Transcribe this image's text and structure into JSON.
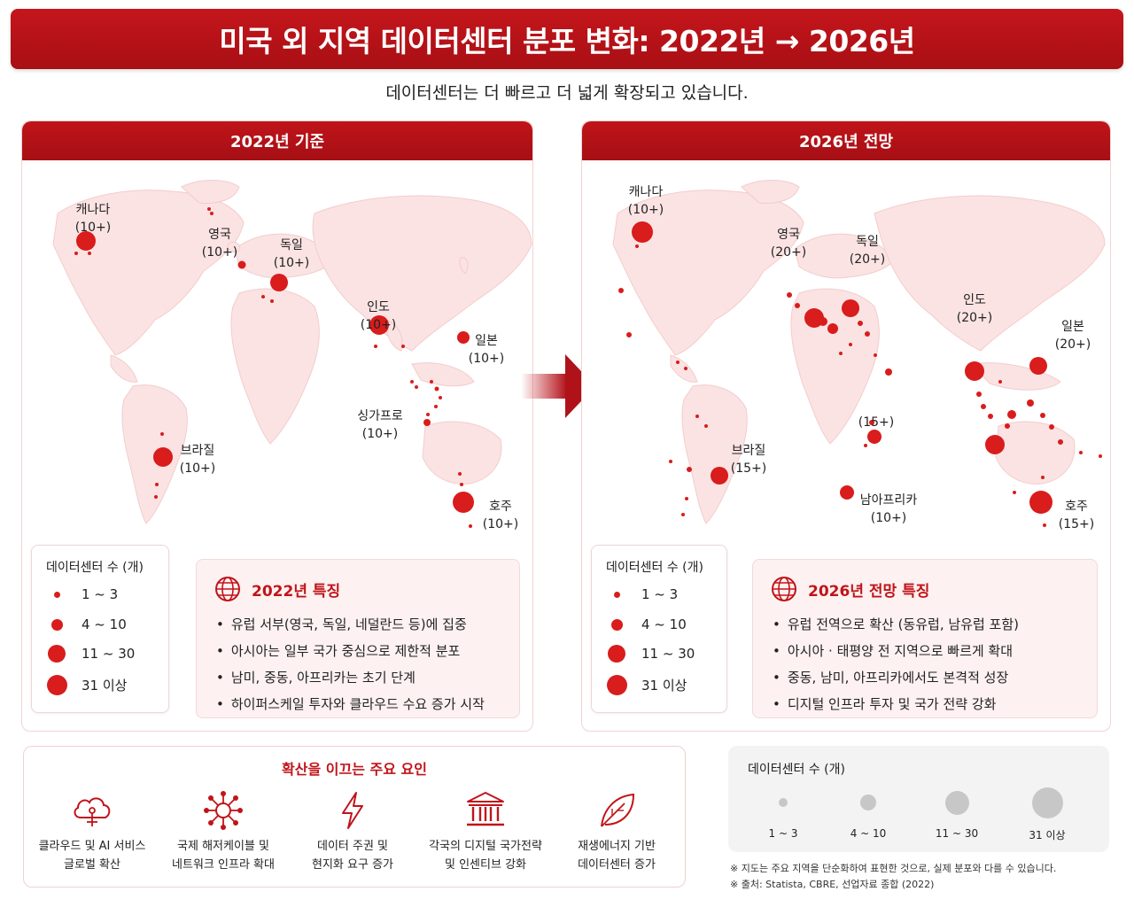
{
  "title": "미국 외 지역 데이터센터 분포 변화: 2022년 → 2026년",
  "subtitle": "데이터센터는 더 빠르고 더 넓게 확장되고 있습니다.",
  "left": {
    "header": "2022년 기준",
    "labels": [
      {
        "name": "캐나다",
        "count": "(10+)"
      },
      {
        "name": "영국",
        "count": "(10+)"
      },
      {
        "name": "독일",
        "count": "(10+)"
      },
      {
        "name": "인도",
        "count": "(10+)"
      },
      {
        "name": "일본",
        "count": "(10+)"
      },
      {
        "name": "싱가프로",
        "count": "(10+)"
      },
      {
        "name": "브라질",
        "count": "(10+)"
      },
      {
        "name": "호주",
        "count": "(10+)"
      }
    ],
    "feature_title": "2022년 특징",
    "features": [
      "유럽 서부(영국, 독일, 네덜란드 등)에 집중",
      "아시아는 일부 국가 중심으로 제한적 분포",
      "남미, 중동, 아프리카는 초기 단계",
      "하이퍼스케일 투자와 클라우드 수요 증가 시작"
    ]
  },
  "right": {
    "header": "2026년 전망",
    "labels": [
      {
        "name": "캐나다",
        "count": "(10+)"
      },
      {
        "name": "영국",
        "count": "(20+)"
      },
      {
        "name": "독일",
        "count": "(20+)"
      },
      {
        "name": "인도",
        "count": "(20+)"
      },
      {
        "name": "일본",
        "count": "(20+)"
      },
      {
        "name": "",
        "count": "(15+)"
      },
      {
        "name": "브라질",
        "count": "(15+)"
      },
      {
        "name": "남아프리카",
        "count": "(10+)"
      },
      {
        "name": "호주",
        "count": "(15+)"
      }
    ],
    "feature_title": "2026년 전망 특징",
    "features": [
      "유럽 전역으로 확산 (동유럽, 남유럽 포함)",
      "아시아 · 태평양 전 지역으로 빠르게 확대",
      "중동, 남미, 아프리카에서도 본격적 성장",
      "디지털 인프라 투자 및 국가 전략 강화"
    ]
  },
  "legend": {
    "title": "데이터센터 수 (개)",
    "items": [
      "1 ~ 3",
      "4 ~ 10",
      "11 ~ 30",
      "31 이상"
    ]
  },
  "factors": {
    "title": "확산을 이끄는 주요 요인",
    "items": [
      {
        "icon": "cloud-ai-icon",
        "line1": "클라우드 및 AI 서비스",
        "line2": "글로벌 확산"
      },
      {
        "icon": "network-icon",
        "line1": "국제 해저케이블 및",
        "line2": "네트워크 인프라 확대"
      },
      {
        "icon": "lightning-icon",
        "line1": "데이터 주권 및",
        "line2": "현지화 요구 증가"
      },
      {
        "icon": "government-icon",
        "line1": "각국의 디지털 국가전략",
        "line2": "및 인센티브 강화"
      },
      {
        "icon": "leaf-icon",
        "line1": "재생에너지 기반",
        "line2": "데이터센터 증가"
      }
    ]
  },
  "size_legend": {
    "title": "데이터센터 수 (개)",
    "items": [
      "1 ~ 3",
      "4 ~ 10",
      "11 ~ 30",
      "31 이상"
    ]
  },
  "notes": [
    "※ 지도는 주요 지역을 단순화하여 표현한 것으로, 실제 분포와 다를 수 있습니다.",
    "※ 출처: Statista, CBRE, 선업자료 종합 (2022)"
  ],
  "colors": {
    "accent": "#c0141a",
    "dot": "#d91c1c",
    "land": "#fbe3e3"
  }
}
